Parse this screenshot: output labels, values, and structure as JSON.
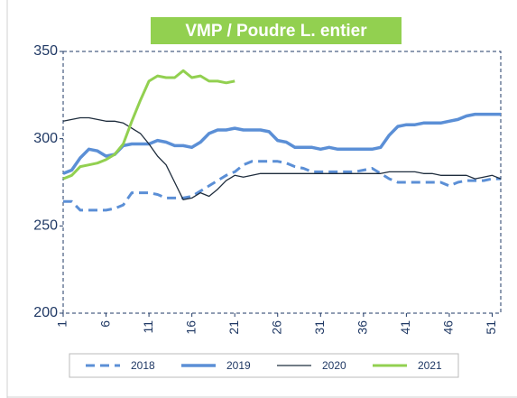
{
  "chart_data": {
    "type": "line",
    "title": "VMP / Poudre L. entier",
    "x": [
      1,
      2,
      3,
      4,
      5,
      6,
      7,
      8,
      9,
      10,
      11,
      12,
      13,
      14,
      15,
      16,
      17,
      18,
      19,
      20,
      21,
      22,
      23,
      24,
      25,
      26,
      27,
      28,
      29,
      30,
      31,
      32,
      33,
      34,
      35,
      36,
      37,
      38,
      39,
      40,
      41,
      42,
      43,
      44,
      45,
      46,
      47,
      48,
      49,
      50,
      51,
      52
    ],
    "xlim": [
      1,
      52
    ],
    "xticks": [
      1,
      6,
      11,
      16,
      21,
      26,
      31,
      36,
      41,
      46,
      51
    ],
    "ylim": [
      200,
      350
    ],
    "yticks": [
      200,
      250,
      300,
      350
    ],
    "series": [
      {
        "name": "2018",
        "color": "#5b8fd6",
        "dashed": true,
        "width": 3,
        "values": [
          264,
          264,
          259,
          259,
          259,
          259,
          260,
          262,
          269,
          269,
          269,
          268,
          266,
          266,
          266,
          267,
          270,
          273,
          276,
          279,
          281,
          285,
          287,
          287,
          287,
          287,
          286,
          284,
          283,
          281,
          281,
          281,
          281,
          281,
          281,
          282,
          283,
          280,
          277,
          275,
          275,
          275,
          275,
          275,
          275,
          273,
          275,
          276,
          276,
          276,
          277,
          277
        ]
      },
      {
        "name": "2019",
        "color": "#5b8fd6",
        "dashed": false,
        "width": 3.5,
        "values": [
          280,
          282,
          289,
          294,
          293,
          290,
          291,
          296,
          297,
          297,
          297,
          299,
          298,
          296,
          296,
          295,
          298,
          303,
          305,
          305,
          306,
          305,
          305,
          305,
          304,
          299,
          298,
          295,
          295,
          295,
          294,
          295,
          294,
          294,
          294,
          294,
          294,
          295,
          302,
          307,
          308,
          308,
          309,
          309,
          309,
          310,
          311,
          313,
          314,
          314,
          314,
          314
        ]
      },
      {
        "name": "2020",
        "color": "#1f2d3d",
        "dashed": false,
        "width": 1.3,
        "values": [
          310,
          311,
          312,
          312,
          311,
          310,
          310,
          309,
          306,
          303,
          297,
          290,
          285,
          275,
          265,
          266,
          269,
          267,
          271,
          276,
          279,
          278,
          279,
          280,
          280,
          280,
          280,
          280,
          280,
          280,
          280,
          280,
          280,
          280,
          280,
          280,
          280,
          280,
          281,
          281,
          281,
          281,
          280,
          280,
          279,
          279,
          279,
          279,
          277,
          278,
          279,
          277
        ]
      },
      {
        "name": "2021",
        "color": "#92d050",
        "dashed": false,
        "width": 3,
        "values": [
          277,
          279,
          284,
          285,
          286,
          288,
          291,
          297,
          310,
          322,
          333,
          336,
          335,
          335,
          339,
          335,
          336,
          333,
          333,
          332,
          333,
          null,
          null,
          null,
          null,
          null,
          null,
          null,
          null,
          null,
          null,
          null,
          null,
          null,
          null,
          null,
          null,
          null,
          null,
          null,
          null,
          null,
          null,
          null,
          null,
          null,
          null,
          null,
          null,
          null,
          null,
          null
        ]
      }
    ]
  }
}
